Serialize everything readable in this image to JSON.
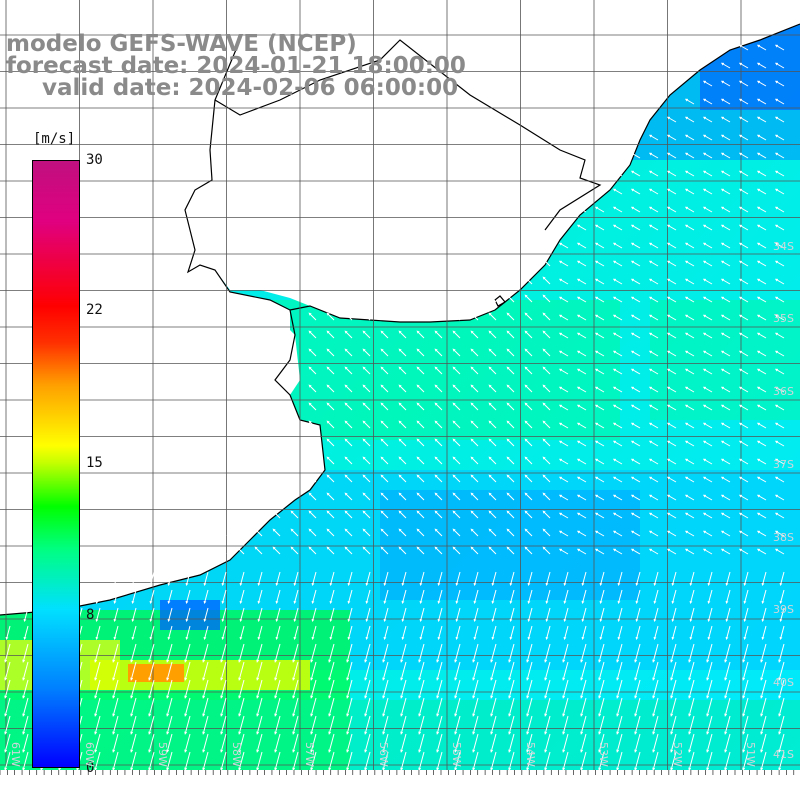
{
  "title": {
    "line1": "modelo GEFS-WAVE (NCEP)",
    "line2": "forecast date: 2024-01-21 18:00:00",
    "line3": "valid date: 2024-02-06 06:00:00"
  },
  "colorbar": {
    "unit": "[m/s]",
    "ticks": [
      "30",
      "22",
      "15",
      "8",
      "0"
    ],
    "tick_values": [
      30,
      22,
      15,
      8,
      0
    ],
    "range": [
      0,
      30
    ]
  },
  "axes": {
    "lat_labels": [
      "34S",
      "35S",
      "36S",
      "37S",
      "38S",
      "39S",
      "40S",
      "41S"
    ],
    "lon_labels": [
      "61W",
      "60W",
      "59W",
      "58W",
      "57W",
      "56W",
      "55W",
      "54W",
      "53W",
      "52W",
      "51W"
    ]
  },
  "colors": {
    "land": "#ffffff",
    "coastline": "#000000",
    "grid": "#555555",
    "arrows": "#ffffff"
  }
}
